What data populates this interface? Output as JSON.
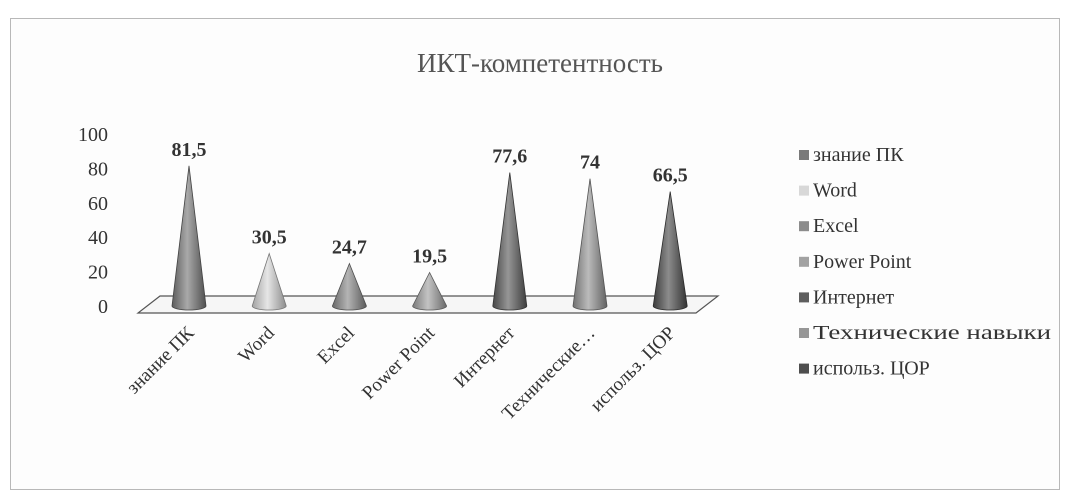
{
  "chart_data": {
    "type": "bar",
    "mark": "cone",
    "title": "ИКТ-компетентность",
    "xlabel": "",
    "ylabel": "",
    "ylim": [
      0,
      100
    ],
    "yticks": [
      0,
      20,
      40,
      60,
      80,
      100
    ],
    "grid": false,
    "legend_position": "right",
    "categories": [
      "знание ПК",
      "Word",
      "Excel",
      "Power Point",
      "Интернет",
      "Технические…",
      "использ. ЦОР"
    ],
    "legend": [
      "знание ПК",
      "Word",
      "Excel",
      "Power Point",
      "Интернет",
      "Технические навыки",
      "использ. ЦОР"
    ],
    "values": [
      81.5,
      30.5,
      24.7,
      19.5,
      77.6,
      74,
      66.5
    ],
    "data_labels": [
      "81,5",
      "30,5",
      "24,7",
      "19,5",
      "77,6",
      "74",
      "66,5"
    ],
    "colors": [
      "#7a7a7a",
      "#d8d8d8",
      "#8c8c8c",
      "#a2a2a2",
      "#5e5e5e",
      "#969696",
      "#4e4e4e"
    ]
  }
}
